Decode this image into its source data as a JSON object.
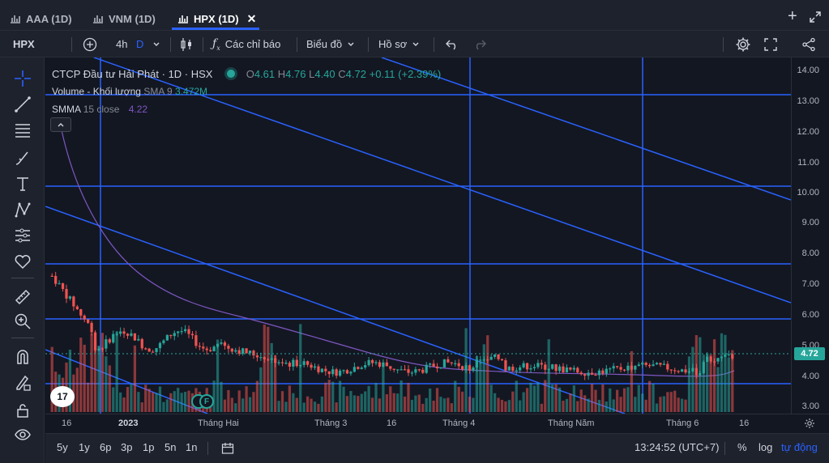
{
  "tabs": [
    {
      "label": "AAA (1D)",
      "active": false
    },
    {
      "label": "VNM (1D)",
      "active": false
    },
    {
      "label": "HPX (1D)",
      "active": true
    }
  ],
  "toolbar": {
    "symbol": "HPX",
    "interval": "4h",
    "interval_highlight": "D",
    "indicators_label": "Các chỉ báo",
    "chart_label": "Biểu đồ",
    "profile_label": "Hồ sơ"
  },
  "legend": {
    "title": "CTCP Đầu tư Hải Phát · 1D · HSX",
    "o_label": "O",
    "o_value": "4.61",
    "h_label": "H",
    "h_value": "4.76",
    "l_label": "L",
    "l_value": "4.40",
    "c_label": "C",
    "c_value": "4.72",
    "change": "+0.11 (+2.39%)",
    "volume_label": "Volume - Khối lượng",
    "volume_param": "SMA 9",
    "volume_value": "3.472M",
    "smma_label": "SMMA",
    "smma_param": "15 close",
    "smma_value": "4.22"
  },
  "price_axis": {
    "ticks": [
      "14.00",
      "13.00",
      "12.00",
      "11.00",
      "10.00",
      "9.00",
      "8.00",
      "7.00",
      "6.00",
      "5.00",
      "4.00",
      "3.00"
    ],
    "current": "4.72"
  },
  "time_axis": {
    "ticks": [
      "16",
      "2023",
      "Tháng Hai",
      "Tháng 3",
      "16",
      "Tháng 4",
      "Tháng Năm",
      "Tháng 6",
      "16"
    ]
  },
  "bottom": {
    "ranges": [
      "5y",
      "1y",
      "6p",
      "3p",
      "1p",
      "5n",
      "1n"
    ],
    "clock": "13:24:52 (UTC+7)",
    "percent": "%",
    "log": "log",
    "auto": "tự động"
  },
  "events": [
    "F"
  ],
  "logo": "17",
  "colors": {
    "up": "#26a69a",
    "down": "#ef5350",
    "lines": "#2962ff",
    "smma": "#7e57c2",
    "bg": "#131722",
    "panel": "#1e222d"
  },
  "icons": [
    "chart-bars-icon",
    "plus-icon",
    "expand-icon",
    "add-circle-icon",
    "candle-icon",
    "fx-icon",
    "chevron-down-icon",
    "undo-icon",
    "redo-icon",
    "gear-icon",
    "fullscreen-icon",
    "share-icon",
    "crosshair-icon",
    "trendline-icon",
    "fib-icon",
    "brush-icon",
    "text-icon",
    "pattern-icon",
    "forecast-icon",
    "heart-icon",
    "ruler-icon",
    "zoom-icon",
    "magnet-icon",
    "lock-pencil-icon",
    "lock-icon",
    "eye-icon",
    "calendar-range-icon",
    "settings-small-icon"
  ]
}
